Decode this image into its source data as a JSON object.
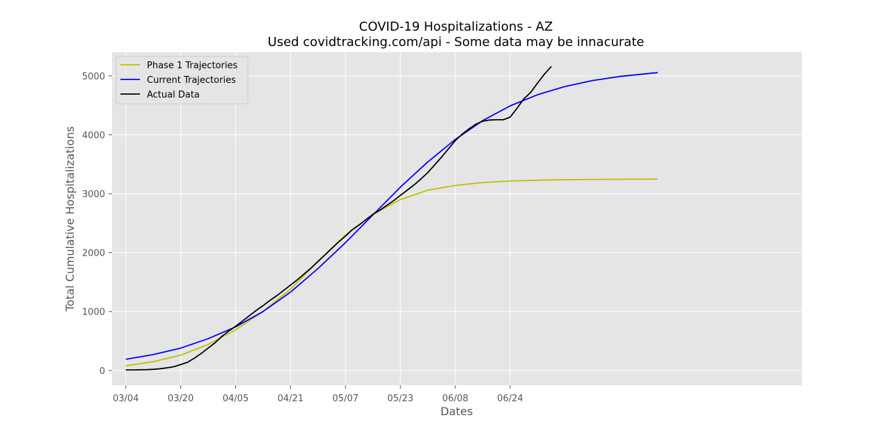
{
  "chart_data": {
    "type": "line",
    "title": "COVID-19 Hospitalizations - AZ",
    "subtitle": "Used covidtracking.com/api - Some data may be innacurate",
    "xlabel": "Dates",
    "ylabel": "Total Cumulative Hospitalizations",
    "xlim": [
      -4,
      197
    ],
    "ylim": [
      -250,
      5400
    ],
    "x_ticks": [
      {
        "day": 0,
        "label": "03/04"
      },
      {
        "day": 16,
        "label": "03/20"
      },
      {
        "day": 32,
        "label": "04/05"
      },
      {
        "day": 48,
        "label": "04/21"
      },
      {
        "day": 64,
        "label": "05/07"
      },
      {
        "day": 80,
        "label": "05/23"
      },
      {
        "day": 96,
        "label": "06/08"
      },
      {
        "day": 112,
        "label": "06/24"
      }
    ],
    "y_ticks": [
      0,
      1000,
      2000,
      3000,
      4000,
      5000
    ],
    "grid": true,
    "legend_position": "top-left",
    "colors": {
      "background": "#e5e5e5",
      "grid": "#ffffff",
      "phase1": "#bfbf00",
      "current": "#0000ff",
      "actual": "#000000"
    },
    "series": [
      {
        "name": "Phase 1 Trajectories",
        "color": "#bfbf00",
        "x": [
          0,
          8,
          16,
          24,
          32,
          40,
          48,
          56,
          64,
          72,
          80,
          88,
          96,
          104,
          112,
          124,
          136,
          148,
          155
        ],
        "y": [
          80,
          150,
          260,
          440,
          690,
          1000,
          1380,
          1850,
          2300,
          2650,
          2900,
          3060,
          3140,
          3190,
          3215,
          3235,
          3242,
          3246,
          3248
        ]
      },
      {
        "name": "Current Trajectories",
        "color": "#0000ff",
        "x": [
          0,
          8,
          16,
          24,
          32,
          40,
          48,
          56,
          64,
          72,
          80,
          88,
          96,
          104,
          112,
          120,
          128,
          136,
          144,
          155
        ],
        "y": [
          190,
          270,
          380,
          540,
          740,
          1000,
          1330,
          1730,
          2170,
          2640,
          3110,
          3540,
          3920,
          4240,
          4490,
          4680,
          4820,
          4920,
          4990,
          5055
        ]
      },
      {
        "name": "Actual Data",
        "color": "#000000",
        "x": [
          0,
          2,
          4,
          6,
          8,
          10,
          12,
          14,
          16,
          18,
          20,
          22,
          24,
          26,
          28,
          30,
          32,
          34,
          36,
          38,
          40,
          42,
          44,
          46,
          48,
          50,
          52,
          54,
          56,
          58,
          60,
          62,
          64,
          66,
          68,
          70,
          72,
          74,
          76,
          78,
          80,
          82,
          84,
          86,
          88,
          90,
          92,
          94,
          96,
          98,
          100,
          102,
          104,
          106,
          108,
          110,
          112,
          114,
          116,
          118,
          120,
          122,
          124
        ],
        "y": [
          10,
          10,
          12,
          14,
          20,
          30,
          45,
          65,
          100,
          140,
          210,
          290,
          380,
          470,
          580,
          670,
          750,
          840,
          930,
          1020,
          1100,
          1190,
          1270,
          1360,
          1450,
          1540,
          1640,
          1740,
          1850,
          1960,
          2070,
          2180,
          2280,
          2390,
          2470,
          2560,
          2650,
          2720,
          2800,
          2880,
          2970,
          3060,
          3150,
          3250,
          3360,
          3490,
          3620,
          3760,
          3900,
          4010,
          4100,
          4180,
          4230,
          4250,
          4255,
          4255,
          4300,
          4450,
          4610,
          4720,
          4880,
          5030,
          5160
        ]
      }
    ]
  }
}
